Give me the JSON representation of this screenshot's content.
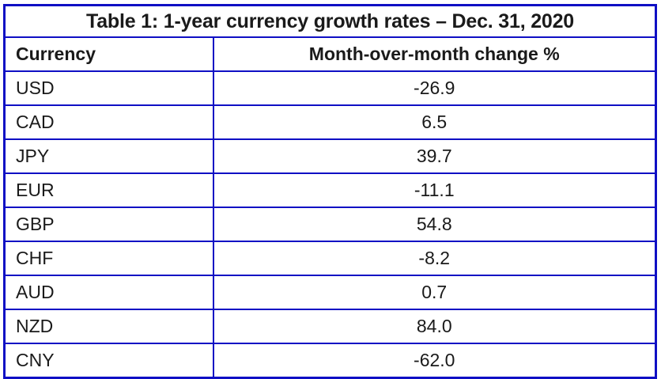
{
  "table": {
    "title": "Table 1: 1-year currency growth rates – Dec. 31, 2020",
    "columns": [
      "Currency",
      "Month-over-month change %"
    ],
    "rows": [
      {
        "currency": "USD",
        "change": "-26.9"
      },
      {
        "currency": "CAD",
        "change": "6.5"
      },
      {
        "currency": "JPY",
        "change": "39.7"
      },
      {
        "currency": "EUR",
        "change": "-11.1"
      },
      {
        "currency": "GBP",
        "change": "54.8"
      },
      {
        "currency": "CHF",
        "change": "-8.2"
      },
      {
        "currency": "AUD",
        "change": "0.7"
      },
      {
        "currency": "NZD",
        "change": "84.0"
      },
      {
        "currency": "CNY",
        "change": "-62.0"
      }
    ],
    "colors": {
      "border": "#0f0fc4",
      "text": "#1a1a1a",
      "background": "#ffffff"
    }
  },
  "chart_data": {
    "type": "table",
    "title": "Table 1: 1-year currency growth rates – Dec. 31, 2020",
    "columns": [
      "Currency",
      "Month-over-month change %"
    ],
    "categories": [
      "USD",
      "CAD",
      "JPY",
      "EUR",
      "GBP",
      "CHF",
      "AUD",
      "NZD",
      "CNY"
    ],
    "values": [
      -26.9,
      6.5,
      39.7,
      -11.1,
      54.8,
      -8.2,
      0.7,
      84.0,
      -62.0
    ]
  }
}
